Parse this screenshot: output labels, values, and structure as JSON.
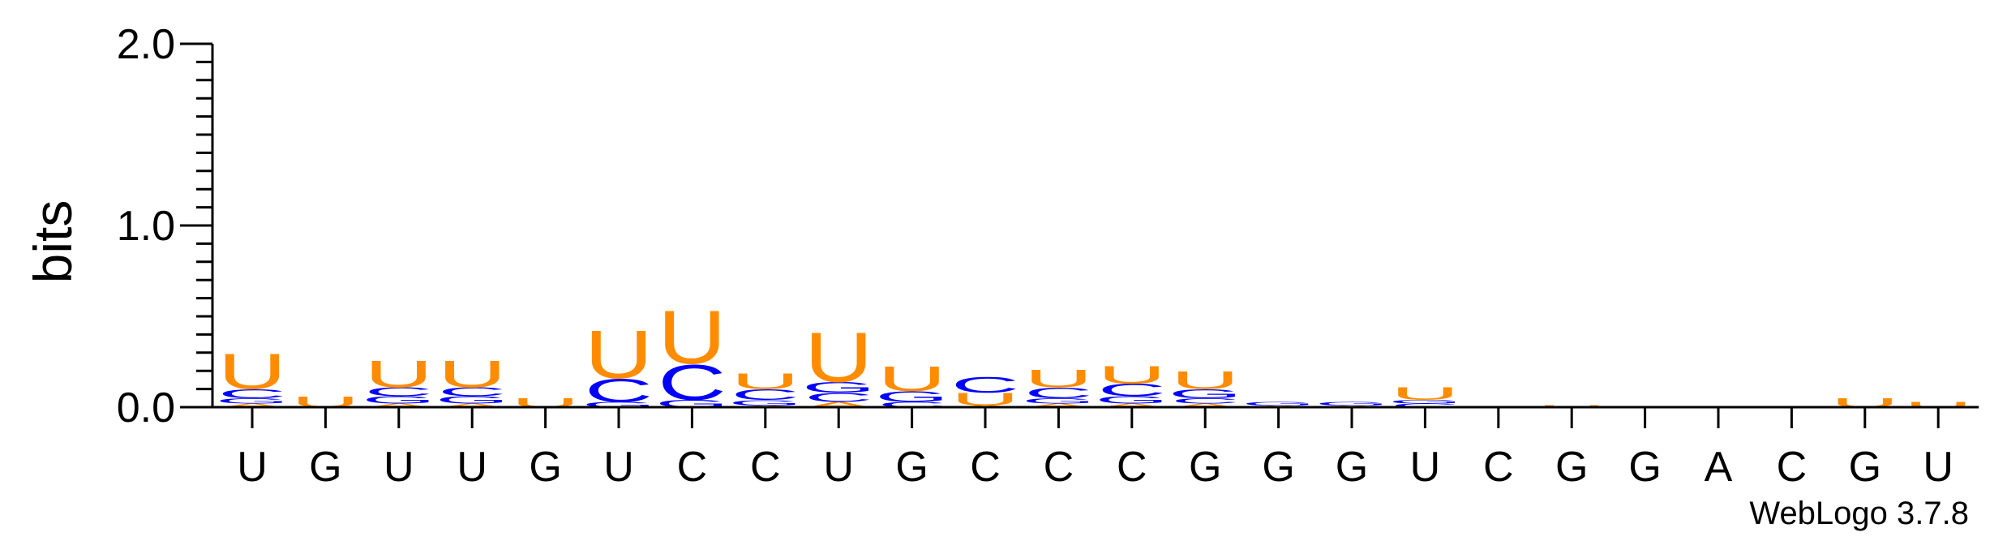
{
  "chart_data": {
    "type": "sequence-logo",
    "ylabel": "bits",
    "ylim": [
      0,
      2.0
    ],
    "yticks": [
      "0.0",
      "1.0",
      "2.0"
    ],
    "credit": "WebLogo 3.7.8",
    "colors": {
      "U": "#FF8C00",
      "C": "#0000FF",
      "G": "#0000FF",
      "A": "#FF8C00"
    },
    "positions": [
      {
        "label": "U",
        "stack": [
          [
            "A",
            0.02
          ],
          [
            "G",
            0.03
          ],
          [
            "C",
            0.05
          ],
          [
            "U",
            0.2
          ]
        ]
      },
      {
        "label": "G",
        "stack": [
          [
            "U",
            0.06
          ]
        ]
      },
      {
        "label": "U",
        "stack": [
          [
            "A",
            0.02
          ],
          [
            "G",
            0.04
          ],
          [
            "C",
            0.05
          ],
          [
            "U",
            0.15
          ]
        ]
      },
      {
        "label": "U",
        "stack": [
          [
            "A",
            0.02
          ],
          [
            "G",
            0.04
          ],
          [
            "C",
            0.05
          ],
          [
            "U",
            0.15
          ]
        ]
      },
      {
        "label": "G",
        "stack": [
          [
            "U",
            0.05
          ]
        ]
      },
      {
        "label": "U",
        "stack": [
          [
            "G",
            0.03
          ],
          [
            "C",
            0.13
          ],
          [
            "U",
            0.27
          ]
        ]
      },
      {
        "label": "C",
        "stack": [
          [
            "G",
            0.04
          ],
          [
            "C",
            0.2
          ],
          [
            "U",
            0.3
          ]
        ]
      },
      {
        "label": "C",
        "stack": [
          [
            "A",
            0.01
          ],
          [
            "G",
            0.03
          ],
          [
            "C",
            0.06
          ],
          [
            "U",
            0.09
          ]
        ]
      },
      {
        "label": "U",
        "stack": [
          [
            "A",
            0.03
          ],
          [
            "C",
            0.05
          ],
          [
            "G",
            0.06
          ],
          [
            "U",
            0.28
          ]
        ]
      },
      {
        "label": "G",
        "stack": [
          [
            "C",
            0.03
          ],
          [
            "G",
            0.06
          ],
          [
            "U",
            0.14
          ]
        ]
      },
      {
        "label": "C",
        "stack": [
          [
            "A",
            0.01
          ],
          [
            "U",
            0.07
          ],
          [
            "C",
            0.09
          ]
        ]
      },
      {
        "label": "C",
        "stack": [
          [
            "A",
            0.02
          ],
          [
            "G",
            0.03
          ],
          [
            "C",
            0.06
          ],
          [
            "U",
            0.1
          ]
        ]
      },
      {
        "label": "C",
        "stack": [
          [
            "A",
            0.02
          ],
          [
            "G",
            0.04
          ],
          [
            "C",
            0.07
          ],
          [
            "U",
            0.1
          ]
        ]
      },
      {
        "label": "G",
        "stack": [
          [
            "A",
            0.02
          ],
          [
            "C",
            0.03
          ],
          [
            "G",
            0.05
          ],
          [
            "U",
            0.1
          ]
        ]
      },
      {
        "label": "G",
        "stack": [
          [
            "A",
            0.01
          ],
          [
            "G",
            0.02
          ]
        ]
      },
      {
        "label": "G",
        "stack": [
          [
            "A",
            0.01
          ],
          [
            "G",
            0.02
          ]
        ]
      },
      {
        "label": "U",
        "stack": [
          [
            "C",
            0.02
          ],
          [
            "G",
            0.02
          ],
          [
            "U",
            0.07
          ]
        ]
      },
      {
        "label": "C",
        "stack": []
      },
      {
        "label": "G",
        "stack": [
          [
            "U",
            0.01
          ]
        ]
      },
      {
        "label": "G",
        "stack": []
      },
      {
        "label": "A",
        "stack": []
      },
      {
        "label": "C",
        "stack": []
      },
      {
        "label": "G",
        "stack": [
          [
            "U",
            0.05
          ]
        ]
      },
      {
        "label": "U",
        "stack": [
          [
            "U",
            0.03
          ]
        ]
      }
    ]
  }
}
